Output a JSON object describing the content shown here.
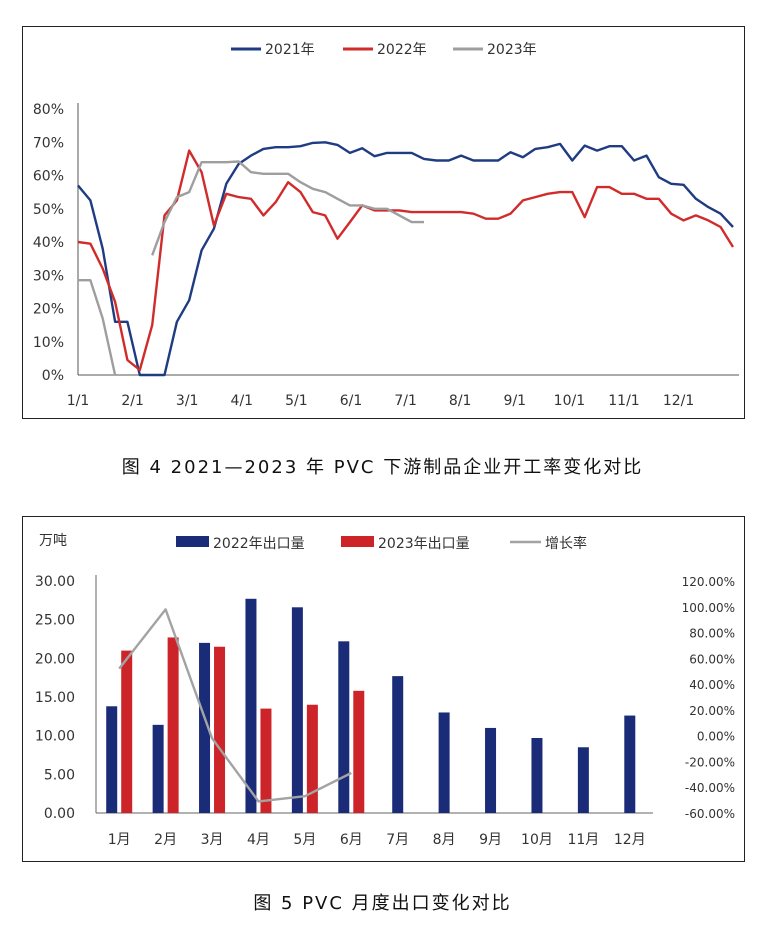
{
  "figures": [
    {
      "caption": "图 4  2021—2023 年 PVC 下游制品企业开工率变化对比"
    },
    {
      "caption": "图 5  PVC 月度出口变化对比"
    }
  ],
  "chart_data": [
    {
      "type": "line",
      "title": "",
      "x_tick_labels": [
        "1/1",
        "2/1",
        "3/1",
        "4/1",
        "5/1",
        "6/1",
        "7/1",
        "8/1",
        "9/1",
        "10/1",
        "11/1",
        "12/1"
      ],
      "ylim": [
        0,
        80
      ],
      "y_tick_labels": [
        "0%",
        "10%",
        "20%",
        "30%",
        "40%",
        "50%",
        "60%",
        "70%",
        "80%"
      ],
      "legend_position": "top-center",
      "grid": false,
      "series": [
        {
          "name": "2021年",
          "color": "#1f3b82",
          "values": [
            57,
            52.5,
            38,
            16,
            16,
            0,
            0,
            0,
            16,
            22.5,
            37.5,
            44,
            57.5,
            63.5,
            66,
            68,
            68.5,
            68.5,
            68.8,
            69.8,
            70,
            69.2,
            66.8,
            68.2,
            65.8,
            66.8,
            66.8,
            66.8,
            65,
            64.5,
            64.5,
            66,
            64.5,
            64.5,
            64.5,
            67,
            65.5,
            68,
            68.5,
            69.5,
            64.5,
            69,
            67.5,
            68.8,
            68.8,
            64.5,
            66,
            59.5,
            57.5,
            57.2,
            53,
            50.5,
            48.5,
            44.5
          ]
        },
        {
          "name": "2022年",
          "color": "#d12b2b",
          "values": [
            40,
            39.5,
            32,
            22,
            4.5,
            1.5,
            15,
            48,
            52.5,
            67.5,
            61,
            45,
            54.5,
            53.5,
            53,
            48,
            52,
            58,
            55,
            49,
            48,
            41,
            46,
            51,
            49.5,
            49.5,
            49.5,
            49,
            49,
            49,
            49,
            49,
            48.5,
            47,
            47,
            48.5,
            52.5,
            53.5,
            54.5,
            55,
            55,
            47.5,
            56.5,
            56.5,
            54.5,
            54.5,
            53,
            53,
            48.5,
            46.5,
            48,
            46.5,
            44.5,
            38.5
          ]
        },
        {
          "name": "2023年",
          "color": "#9e9e9e",
          "values": [
            28.5,
            28.5,
            17,
            0,
            null,
            null,
            36,
            46,
            53.5,
            55,
            64,
            64,
            64,
            64.2,
            61,
            60.5,
            60.5,
            60.5,
            58,
            56,
            55,
            53,
            51,
            51,
            50,
            50,
            48,
            46,
            46
          ]
        }
      ]
    },
    {
      "type": "bar",
      "title": "",
      "categories": [
        "1月",
        "2月",
        "3月",
        "4月",
        "5月",
        "6月",
        "7月",
        "8月",
        "9月",
        "10月",
        "11月",
        "12月"
      ],
      "y_unit_label": "万吨",
      "ylim": [
        0,
        30
      ],
      "y_tick_labels": [
        "0.00",
        "5.00",
        "10.00",
        "15.00",
        "20.00",
        "25.00",
        "30.00"
      ],
      "y2lim": [
        -60,
        120
      ],
      "y2_tick_labels": [
        "-60.00%",
        "-40.00%",
        "-20.00%",
        "0.00%",
        "20.00%",
        "40.00%",
        "60.00%",
        "80.00%",
        "100.00%",
        "120.00%"
      ],
      "legend_position": "top-center",
      "grid": false,
      "series": [
        {
          "name": "2022年出口量",
          "type": "bar",
          "color": "#1a2c78",
          "values": [
            13.8,
            11.4,
            22.0,
            27.7,
            26.6,
            22.2,
            17.7,
            13.0,
            11.0,
            9.7,
            8.5,
            12.6
          ]
        },
        {
          "name": "2023年出口量",
          "type": "bar",
          "color": "#cc2428",
          "values": [
            21.0,
            22.7,
            21.5,
            13.5,
            14.0,
            15.8,
            null,
            null,
            null,
            null,
            null,
            null
          ]
        },
        {
          "name": "增长率",
          "type": "line",
          "axis": "right",
          "color": "#a3a3a3",
          "values": [
            52,
            98,
            -2,
            -51,
            -47,
            -29,
            null,
            null,
            null,
            null,
            null,
            null
          ]
        }
      ]
    }
  ]
}
